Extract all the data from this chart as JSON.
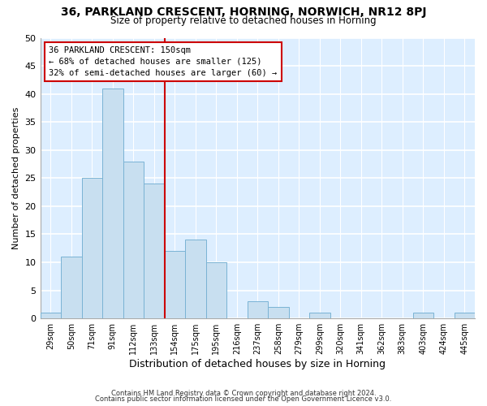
{
  "title": "36, PARKLAND CRESCENT, HORNING, NORWICH, NR12 8PJ",
  "subtitle": "Size of property relative to detached houses in Horning",
  "xlabel": "Distribution of detached houses by size in Horning",
  "ylabel": "Number of detached properties",
  "bar_labels": [
    "29sqm",
    "50sqm",
    "71sqm",
    "91sqm",
    "112sqm",
    "133sqm",
    "154sqm",
    "175sqm",
    "195sqm",
    "216sqm",
    "237sqm",
    "258sqm",
    "279sqm",
    "299sqm",
    "320sqm",
    "341sqm",
    "362sqm",
    "383sqm",
    "403sqm",
    "424sqm",
    "445sqm"
  ],
  "bar_heights": [
    1,
    11,
    25,
    41,
    28,
    24,
    12,
    14,
    10,
    0,
    3,
    2,
    0,
    1,
    0,
    0,
    0,
    0,
    1,
    0,
    1
  ],
  "bar_color": "#c8dff0",
  "bar_edge_color": "#7ab3d4",
  "vline_color": "#cc0000",
  "annotation_line1": "36 PARKLAND CRESCENT: 150sqm",
  "annotation_line2": "← 68% of detached houses are smaller (125)",
  "annotation_line3": "32% of semi-detached houses are larger (60) →",
  "annotation_box_color": "white",
  "annotation_box_edge": "#cc0000",
  "ylim": [
    0,
    50
  ],
  "yticks": [
    0,
    5,
    10,
    15,
    20,
    25,
    30,
    35,
    40,
    45,
    50
  ],
  "footer1": "Contains HM Land Registry data © Crown copyright and database right 2024.",
  "footer2": "Contains public sector information licensed under the Open Government Licence v3.0.",
  "bg_color": "#ffffff",
  "plot_bg_color": "#ddeeff",
  "grid_color": "#ffffff"
}
